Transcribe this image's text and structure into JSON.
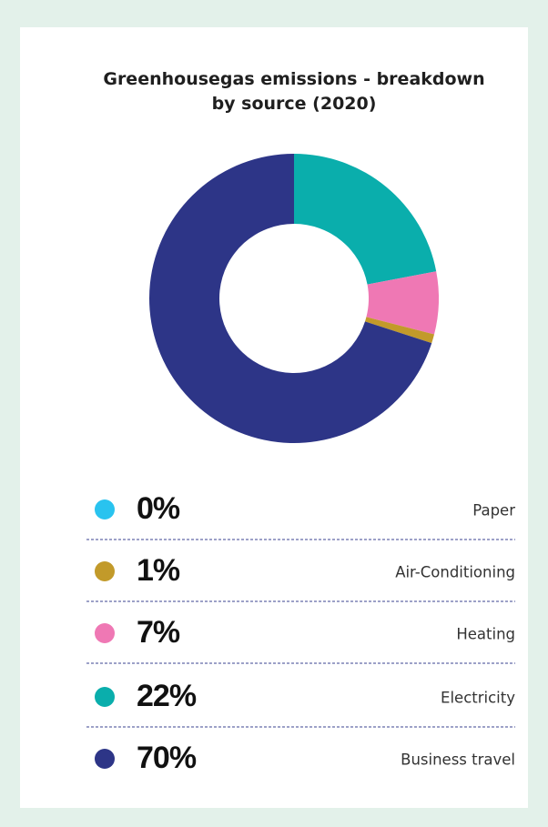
{
  "chart_data": {
    "type": "donut",
    "title": "Greenhousegas emissions - breakdown by source (2020)",
    "categories": [
      "Paper",
      "Air-Conditioning",
      "Heating",
      "Electricity",
      "Business travel"
    ],
    "values": [
      0,
      1,
      7,
      22,
      70
    ],
    "value_labels": [
      "0%",
      "1%",
      "7%",
      "22%",
      "70%"
    ],
    "colors": [
      "#29c3ef",
      "#c29a2a",
      "#ef78b4",
      "#0aaeac",
      "#2d3587"
    ]
  }
}
